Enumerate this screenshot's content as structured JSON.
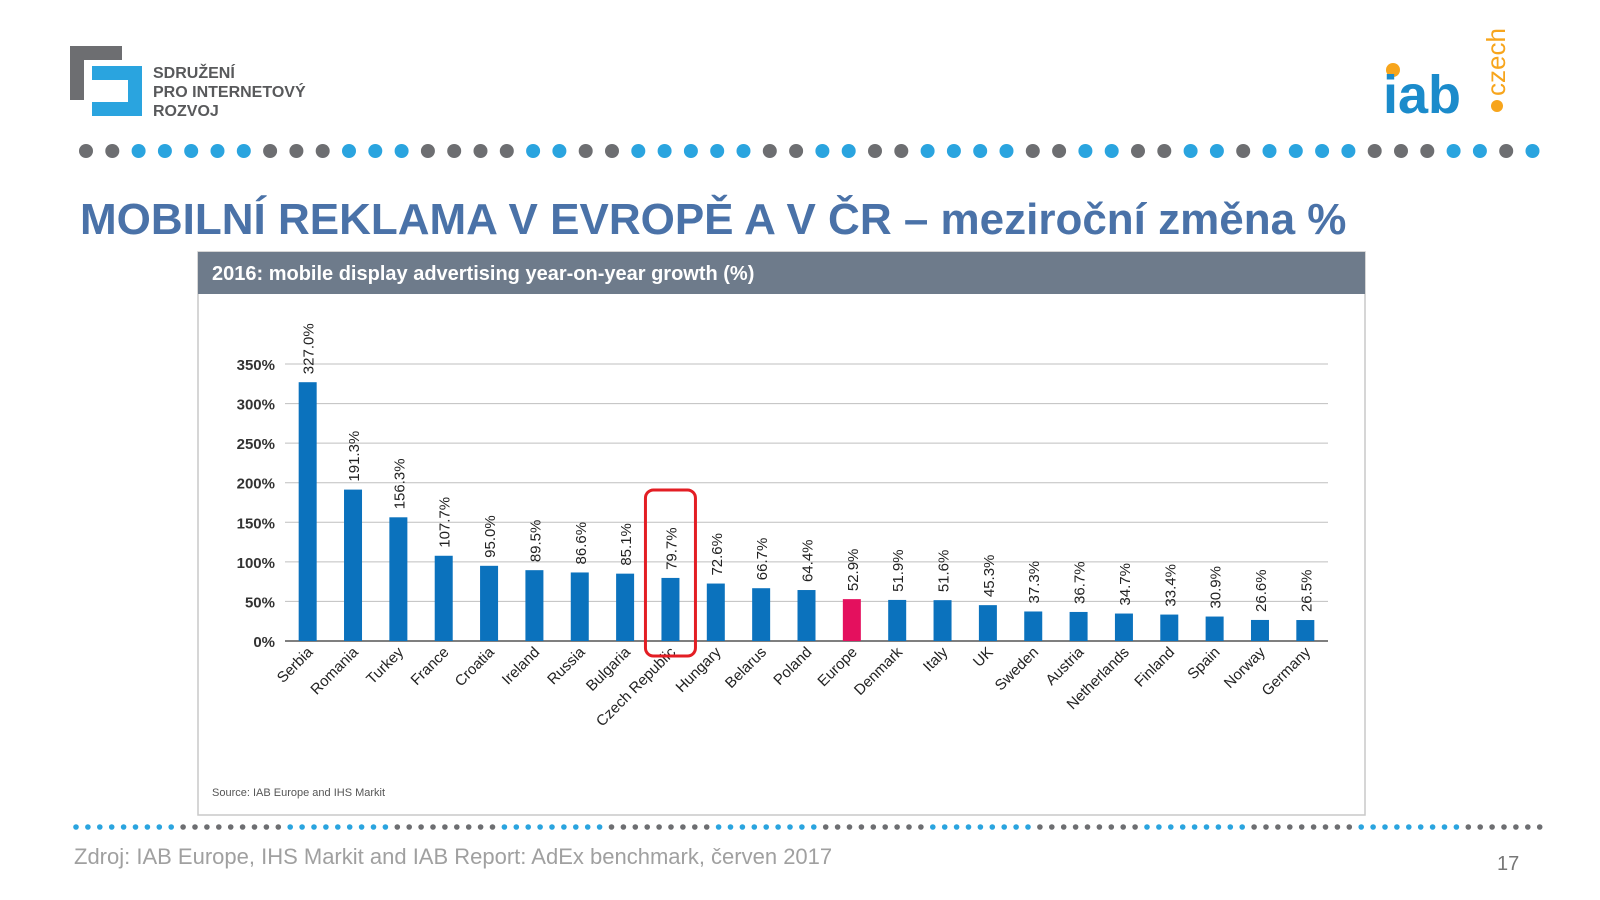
{
  "slide": {
    "logo_left": [
      "SDRUŽENÍ",
      "PRO INTERNETOVÝ",
      "ROZVOJ"
    ],
    "logo_right": {
      "main": "iab",
      "sub": "czech"
    },
    "heading": "MOBILNÍ REKLAMA V EVROPĚ A V ČR – meziroční změna %",
    "footer": "Zdroj: IAB Europe, IHS Markit and IAB Report: AdEx benchmark, červen 2017",
    "page_number": "17"
  },
  "chart_data": {
    "type": "bar",
    "title": "2016: mobile display advertising year-on-year growth (%)",
    "source": "Source: IAB Europe and IHS Markit",
    "categories": [
      "Serbia",
      "Romania",
      "Turkey",
      "France",
      "Croatia",
      "Ireland",
      "Russia",
      "Bulgaria",
      "Czech Republic",
      "Hungary",
      "Belarus",
      "Poland",
      "Europe",
      "Denmark",
      "Italy",
      "UK",
      "Sweden",
      "Austria",
      "Netherlands",
      "Finland",
      "Spain",
      "Norway",
      "Germany"
    ],
    "values": [
      327.0,
      191.3,
      156.3,
      107.7,
      95.0,
      89.5,
      86.6,
      85.1,
      79.7,
      72.6,
      66.7,
      64.4,
      52.9,
      51.9,
      51.6,
      45.3,
      37.3,
      36.7,
      34.7,
      33.4,
      30.9,
      26.6,
      26.5
    ],
    "value_labels": [
      "327.0%",
      "191.3%",
      "156.3%",
      "107.7%",
      "95.0%",
      "89.5%",
      "86.6%",
      "85.1%",
      "79.7%",
      "72.6%",
      "66.7%",
      "64.4%",
      "52.9%",
      "51.9%",
      "51.6%",
      "45.3%",
      "37.3%",
      "36.7%",
      "34.7%",
      "33.4%",
      "30.9%",
      "26.6%",
      "26.5%"
    ],
    "colors": [
      "#0b72bd",
      "#0b72bd",
      "#0b72bd",
      "#0b72bd",
      "#0b72bd",
      "#0b72bd",
      "#0b72bd",
      "#0b72bd",
      "#0b72bd",
      "#0b72bd",
      "#0b72bd",
      "#0b72bd",
      "#e4105e",
      "#0b72bd",
      "#0b72bd",
      "#0b72bd",
      "#0b72bd",
      "#0b72bd",
      "#0b72bd",
      "#0b72bd",
      "#0b72bd",
      "#0b72bd",
      "#0b72bd"
    ],
    "ylim": [
      0,
      350
    ],
    "yticks": [
      {
        "value": 0,
        "label": "0%"
      },
      {
        "value": 50,
        "label": "50%"
      },
      {
        "value": 100,
        "label": "100%"
      },
      {
        "value": 150,
        "label": "150%"
      },
      {
        "value": 200,
        "label": "200%"
      },
      {
        "value": 250,
        "label": "250%"
      },
      {
        "value": 300,
        "label": "300%"
      },
      {
        "value": 350,
        "label": "350%"
      }
    ],
    "grid": true
  }
}
